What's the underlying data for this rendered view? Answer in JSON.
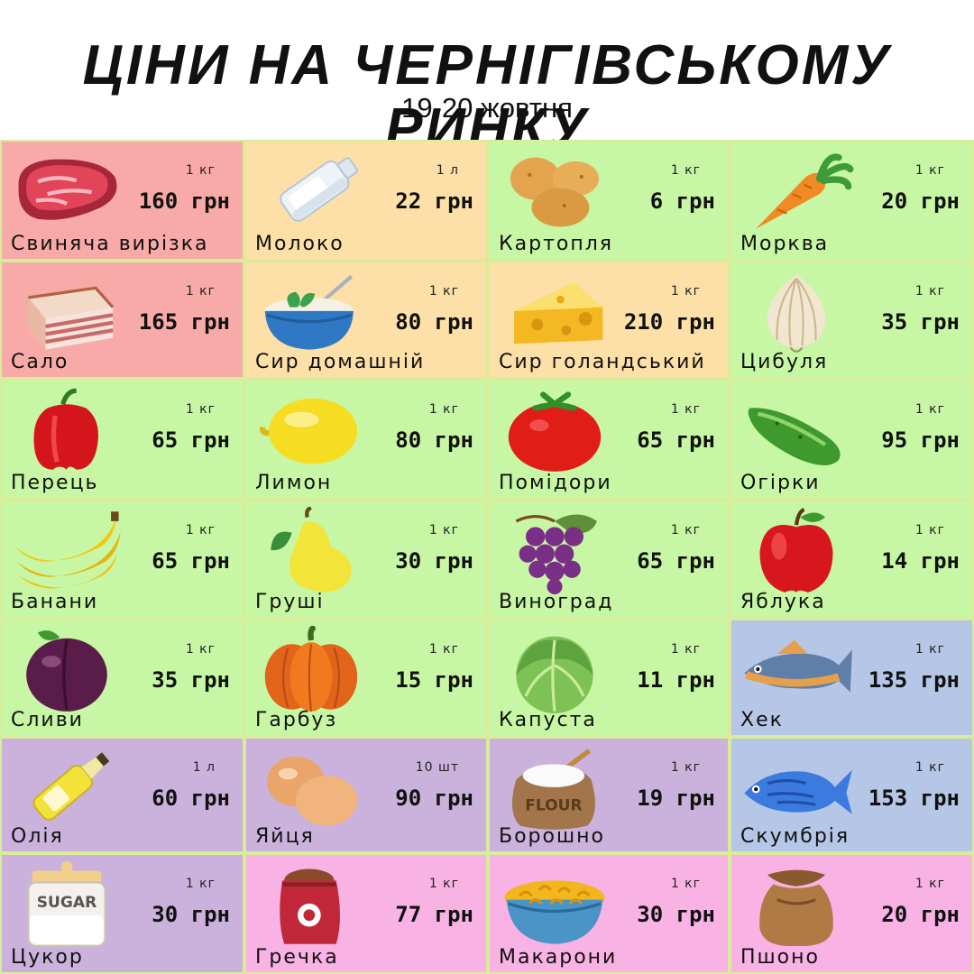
{
  "header": {
    "title": "ЦІНИ НА ЧЕРНІГІВСЬКОМУ РИНКУ",
    "date": "19-20 жовтня"
  },
  "colors": {
    "red": "#f8aaa8",
    "orange": "#fde0a8",
    "green": "#c7f7a4",
    "blue": "#b5c6e6",
    "purple": "#cbb2dc",
    "pink": "#f9b2e4"
  },
  "items": [
    {
      "name": "Свиняча вирізка",
      "unit": "1 кг",
      "price": "160 грн",
      "icon": "meat-icon",
      "bg": "red"
    },
    {
      "name": "Молоко",
      "unit": "1 л",
      "price": "22 грн",
      "icon": "milk-bottle-icon",
      "bg": "orange"
    },
    {
      "name": "Картопля",
      "unit": "1 кг",
      "price": "6 грн",
      "icon": "potato-icon",
      "bg": "green"
    },
    {
      "name": "Морква",
      "unit": "1 кг",
      "price": "20 грн",
      "icon": "carrot-icon",
      "bg": "green"
    },
    {
      "name": "Сало",
      "unit": "1 кг",
      "price": "165 грн",
      "icon": "salo-icon",
      "bg": "red"
    },
    {
      "name": "Сир домашній",
      "unit": "1 кг",
      "price": "80 грн",
      "icon": "cottage-cheese-icon",
      "bg": "orange"
    },
    {
      "name": "Сир голандський",
      "unit": "1 кг",
      "price": "210 грн",
      "icon": "cheese-icon",
      "bg": "orange"
    },
    {
      "name": "Цибуля",
      "unit": "1 кг",
      "price": "35 грн",
      "icon": "onion-icon",
      "bg": "green"
    },
    {
      "name": "Перець",
      "unit": "1 кг",
      "price": "65 грн",
      "icon": "pepper-icon",
      "bg": "green"
    },
    {
      "name": "Лимон",
      "unit": "1 кг",
      "price": "80 грн",
      "icon": "lemon-icon",
      "bg": "green"
    },
    {
      "name": "Помідори",
      "unit": "1 кг",
      "price": "65 грн",
      "icon": "tomato-icon",
      "bg": "green"
    },
    {
      "name": "Огірки",
      "unit": "1 кг",
      "price": "95 грн",
      "icon": "cucumber-icon",
      "bg": "green"
    },
    {
      "name": "Банани",
      "unit": "1 кг",
      "price": "65 грн",
      "icon": "banana-icon",
      "bg": "green"
    },
    {
      "name": "Груші",
      "unit": "1 кг",
      "price": "30 грн",
      "icon": "pear-icon",
      "bg": "green"
    },
    {
      "name": "Виноград",
      "unit": "1 кг",
      "price": "65 грн",
      "icon": "grapes-icon",
      "bg": "green"
    },
    {
      "name": "Яблука",
      "unit": "1 кг",
      "price": "14 грн",
      "icon": "apple-icon",
      "bg": "green"
    },
    {
      "name": "Сливи",
      "unit": "1 кг",
      "price": "35 грн",
      "icon": "plum-icon",
      "bg": "green"
    },
    {
      "name": "Гарбуз",
      "unit": "1 кг",
      "price": "15 грн",
      "icon": "pumpkin-icon",
      "bg": "green"
    },
    {
      "name": "Капуста",
      "unit": "1 кг",
      "price": "11 грн",
      "icon": "cabbage-icon",
      "bg": "green"
    },
    {
      "name": "Хек",
      "unit": "1 кг",
      "price": "135 грн",
      "icon": "hake-fish-icon",
      "bg": "blue"
    },
    {
      "name": "Олія",
      "unit": "1 л",
      "price": "60 грн",
      "icon": "oil-bottle-icon",
      "bg": "purple"
    },
    {
      "name": "Яйця",
      "unit": "10 шт",
      "price": "90 грн",
      "icon": "eggs-icon",
      "bg": "purple"
    },
    {
      "name": "Борошно",
      "unit": "1 кг",
      "price": "19 грн",
      "icon": "flour-sack-icon",
      "bg": "purple",
      "label": "FLOUR"
    },
    {
      "name": "Скумбрія",
      "unit": "1 кг",
      "price": "153 грн",
      "icon": "mackerel-fish-icon",
      "bg": "blue"
    },
    {
      "name": "Цукор",
      "unit": "1 кг",
      "price": "30 грн",
      "icon": "sugar-jar-icon",
      "bg": "purple",
      "label": "SUGAR"
    },
    {
      "name": "Гречка",
      "unit": "1 кг",
      "price": "77 грн",
      "icon": "buckwheat-bag-icon",
      "bg": "pink"
    },
    {
      "name": "Макарони",
      "unit": "1 кг",
      "price": "30 грн",
      "icon": "pasta-bowl-icon",
      "bg": "pink"
    },
    {
      "name": "Пшоно",
      "unit": "1 кг",
      "price": "20 грн",
      "icon": "millet-sack-icon",
      "bg": "pink"
    }
  ]
}
